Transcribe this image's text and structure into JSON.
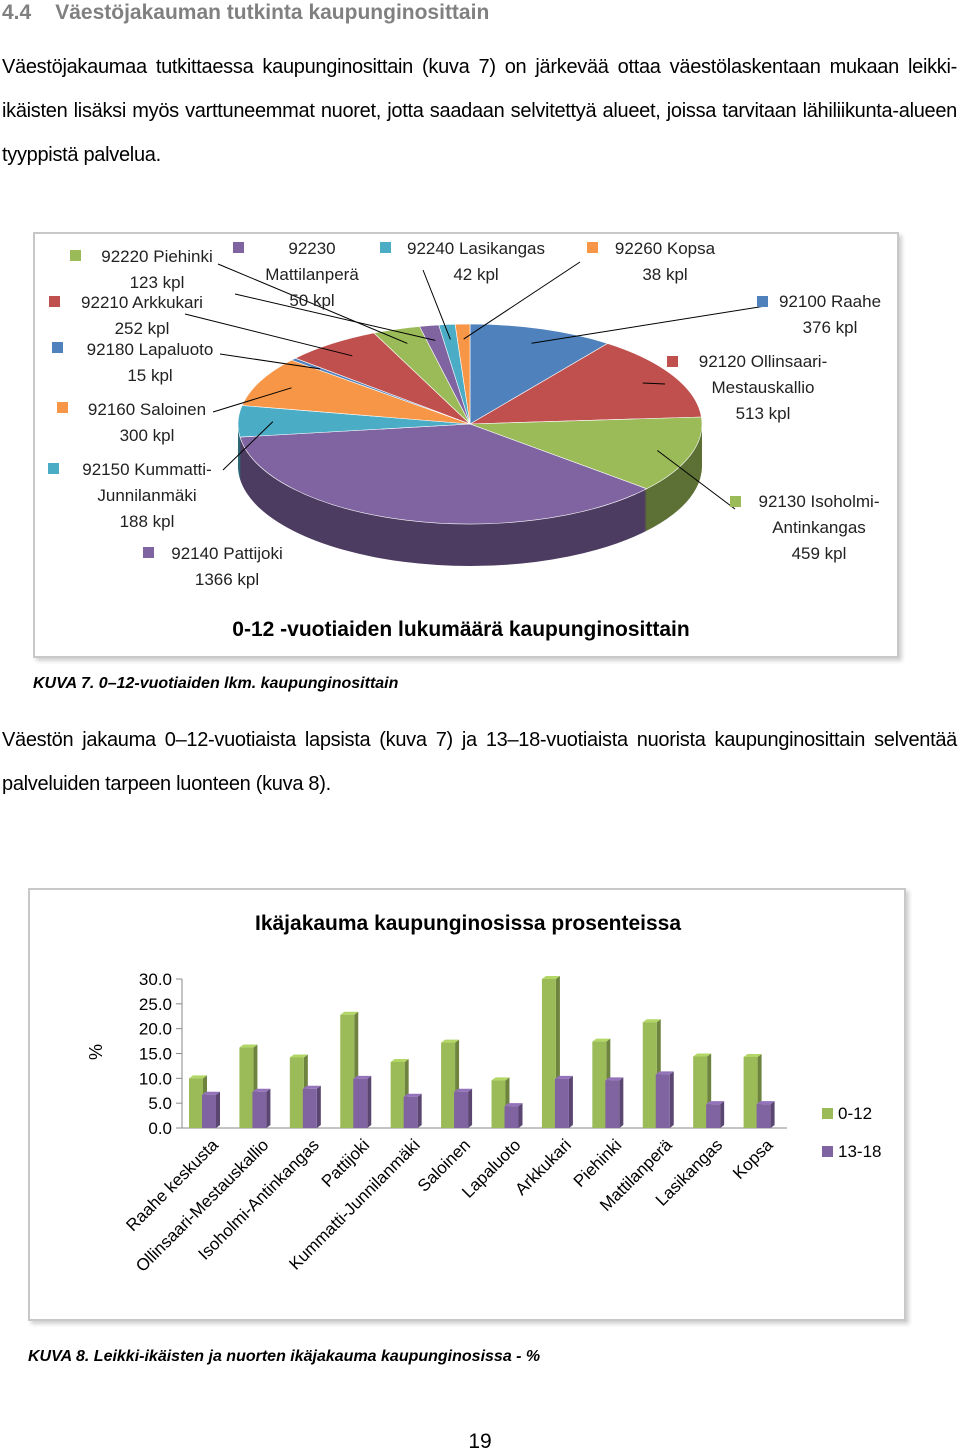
{
  "heading": {
    "number": "4.4",
    "title": "Väestöjakauman tutkinta kaupunginosittain"
  },
  "paragraphs": [
    "Väestöjakaumaa tutkittaessa kaupunginosittain (kuva 7) on järkevää ottaa väestölaskentaan mukaan leikki-ikäisten lisäksi myös varttuneemmat nuoret, jotta saadaan selvitettyä alueet, joissa tarvitaan lähiliikunta-alueen tyyppistä palvelua.",
    "Väestön jakauma 0–12-vuotiaista lapsista (kuva 7) ja 13–18-vuotiaista nuorista kaupunginosittain selventää palveluiden tarpeen luonteen (kuva 8)."
  ],
  "captions": [
    "KUVA 7. 0–12-vuotiaiden lkm. kaupunginosittain",
    "KUVA 8. Leikki-ikäisten ja nuorten ikäjakauma kaupunginosissa - %"
  ],
  "page_number": "19",
  "chart_data": [
    {
      "type": "pie",
      "title": "0-12 -vuotiaiden lukumäärä kaupunginosittain",
      "categories": [
        "92100 Raahe",
        "92120 Ollinsaari-Mestauskallio",
        "92130 Isoholmi-Antinkangas",
        "92140 Pattijoki",
        "92150 Kummatti-Junnilanmäki",
        "92160 Saloinen",
        "92180 Lapaluoto",
        "92210 Arkkukari",
        "92220 Piehinki",
        "92230 Mattilanperä",
        "92240 Lasikangas",
        "92260 Kopsa"
      ],
      "values": [
        376,
        513,
        459,
        1366,
        188,
        300,
        15,
        252,
        123,
        50,
        42,
        38
      ],
      "value_labels": [
        "376 kpl",
        "513 kpl",
        "459 kpl",
        "1366 kpl",
        "188 kpl",
        "300 kpl",
        "15 kpl",
        "252 kpl",
        "123 kpl",
        "50 kpl",
        "42 kpl",
        "38 kpl"
      ],
      "colors": [
        "#4f81bd",
        "#c0504d",
        "#9bbb59",
        "#8064a2",
        "#4bacc6",
        "#f79646",
        "#4f81bd",
        "#c0504d",
        "#9bbb59",
        "#8064a2",
        "#4bacc6",
        "#f79646"
      ]
    },
    {
      "type": "bar",
      "title": "Ikäjakauma kaupunginosissa prosenteissa",
      "y_label": "%",
      "categories": [
        "Raahe keskusta",
        "Ollinsaari-Mestauskallio",
        "Isoholmi-Antinkangas",
        "Pattijoki",
        "Kummatti-Junnilanmäki",
        "Saloinen",
        "Lapaluoto",
        "Arkkukari",
        "Piehinki",
        "Mattilanperä",
        "Lasikangas",
        "Kopsa"
      ],
      "series": [
        {
          "name": "0-12",
          "color": "#9bbb59",
          "values": [
            10.0,
            16.2,
            14.2,
            22.8,
            13.3,
            17.2,
            9.6,
            30.0,
            17.4,
            21.3,
            14.4,
            14.3
          ]
        },
        {
          "name": "13-18",
          "color": "#8064a2",
          "values": [
            6.7,
            7.3,
            7.9,
            9.9,
            6.3,
            7.3,
            4.4,
            9.9,
            9.6,
            10.8,
            4.8,
            4.8
          ]
        }
      ],
      "ylim": [
        0,
        30
      ],
      "yticks": [
        {
          "value": 0,
          "label": "0.0"
        },
        {
          "value": 5,
          "label": "5.0"
        },
        {
          "value": 10,
          "label": "10.0"
        },
        {
          "value": 15,
          "label": "15.0"
        },
        {
          "value": 20,
          "label": "20.0"
        },
        {
          "value": 25,
          "label": "25.0"
        },
        {
          "value": 30,
          "label": "30.0"
        }
      ],
      "legend": "right"
    }
  ]
}
